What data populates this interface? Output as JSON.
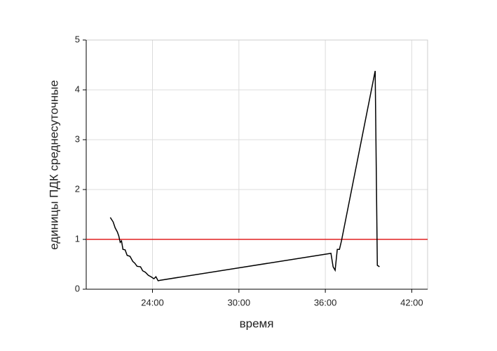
{
  "chart_data": {
    "type": "line",
    "x_label": "время",
    "y_label": "единицы ПДК среднесуточные",
    "x": [
      21.07,
      21.27,
      21.41,
      21.56,
      21.66,
      21.76,
      21.85,
      21.95,
      22.1,
      22.24,
      22.44,
      22.63,
      22.78,
      22.93,
      23.17,
      23.32,
      23.51,
      23.71,
      23.9,
      24.1,
      24.24,
      24.39,
      24.54,
      36.39,
      36.54,
      36.68,
      36.83,
      36.98,
      37.12,
      39.46,
      39.61,
      39.76
    ],
    "series": [
      {
        "color": "#000000",
        "values": [
          1.44,
          1.35,
          1.23,
          1.15,
          1.07,
          0.94,
          0.97,
          0.8,
          0.79,
          0.68,
          0.66,
          0.56,
          0.52,
          0.46,
          0.45,
          0.37,
          0.34,
          0.28,
          0.25,
          0.21,
          0.25,
          0.17,
          0.18,
          0.72,
          0.45,
          0.38,
          0.8,
          0.8,
          0.97,
          4.38,
          0.48,
          0.45
        ]
      }
    ],
    "threshold": {
      "value": 1,
      "color": "#e02020"
    },
    "xlim": [
      19.4,
      43.1
    ],
    "ylim": [
      0,
      5
    ],
    "xticks": [
      {
        "value": 24,
        "label": "24:00"
      },
      {
        "value": 30,
        "label": "30:00"
      },
      {
        "value": 36,
        "label": "36:00"
      },
      {
        "value": 42,
        "label": "42:00"
      }
    ],
    "yticks": [
      0,
      1,
      2,
      3,
      4,
      5
    ],
    "grid": true
  }
}
